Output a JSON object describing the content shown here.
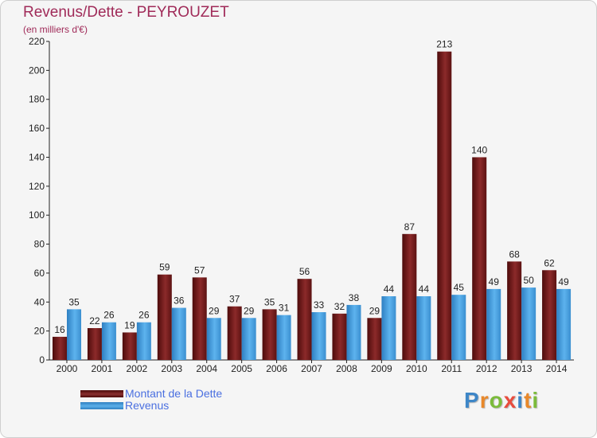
{
  "chart_data": {
    "type": "bar",
    "title": "Revenus/Dette - PEYROUZET",
    "subtitle": "(en milliers d'€)",
    "categories": [
      "2000",
      "2001",
      "2002",
      "2003",
      "2004",
      "2005",
      "2006",
      "2007",
      "2008",
      "2009",
      "2010",
      "2011",
      "2012",
      "2013",
      "2014"
    ],
    "series": [
      {
        "name": "Montant de la Dette",
        "values": [
          16,
          22,
          19,
          59,
          57,
          37,
          35,
          56,
          32,
          29,
          87,
          213,
          140,
          68,
          62
        ],
        "color": "#7a1b1b"
      },
      {
        "name": "Revenus",
        "values": [
          35,
          26,
          26,
          36,
          29,
          29,
          31,
          33,
          38,
          44,
          44,
          45,
          49,
          50,
          49
        ],
        "color": "#4aa3e0"
      }
    ],
    "ylim": [
      0,
      220
    ],
    "yticks": [
      0,
      20,
      40,
      60,
      80,
      100,
      120,
      140,
      160,
      180,
      200,
      220
    ],
    "grid": false,
    "legend_position": "bottom-left"
  },
  "legend": {
    "debt_label": "Montant de la Dette",
    "revenue_label": "Revenus"
  },
  "branding": {
    "logo_letters": [
      "P",
      "r",
      "o",
      "x",
      "i",
      "t",
      "i"
    ],
    "logo_colors": [
      "#3e86c7",
      "#e8882a",
      "#7bbb3b",
      "#e84c3d",
      "#3e86c7",
      "#e8882a",
      "#7bbb3b"
    ]
  }
}
